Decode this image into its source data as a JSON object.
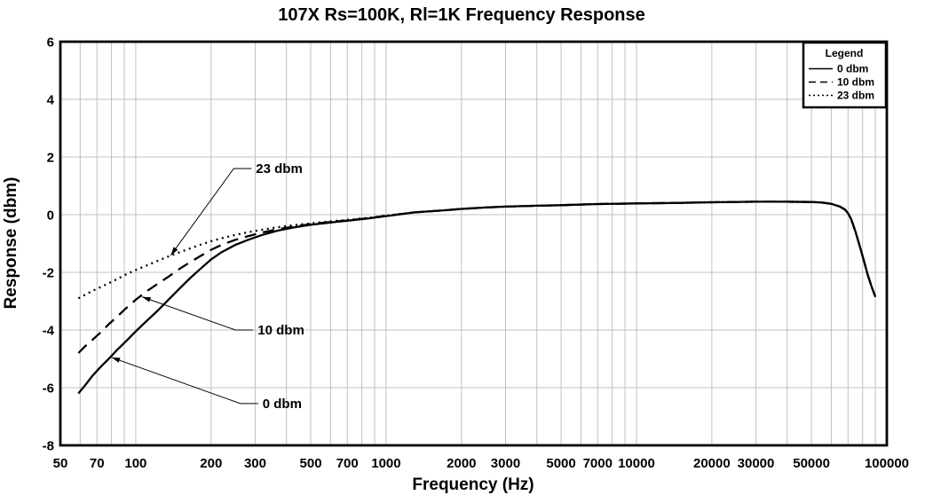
{
  "colors": {
    "background": "#ffffff",
    "grid": "#c0c0c0",
    "curve": "#000000",
    "text": "#000000",
    "border": "#000000"
  },
  "chart_data": {
    "type": "line",
    "title": "107X Rs=100K, Rl=1K Frequency Response",
    "xlabel": "Frequency (Hz)",
    "ylabel": "Response (dbm)",
    "x_scale": "log",
    "xlim": [
      50,
      100000
    ],
    "ylim": [
      -8,
      6
    ],
    "grid": true,
    "y_ticks": [
      {
        "v": 6,
        "label": "6"
      },
      {
        "v": 4,
        "label": "4"
      },
      {
        "v": 2,
        "label": "2"
      },
      {
        "v": 0,
        "label": "0"
      },
      {
        "v": -2,
        "label": "-2"
      },
      {
        "v": -4,
        "label": "-4"
      },
      {
        "v": -6,
        "label": "-6"
      },
      {
        "v": -8,
        "label": "-8"
      }
    ],
    "x_ticks": [
      {
        "f": 50,
        "label": "50"
      },
      {
        "f": 70,
        "label": "70"
      },
      {
        "f": 100,
        "label": "100"
      },
      {
        "f": 200,
        "label": "200"
      },
      {
        "f": 300,
        "label": "300"
      },
      {
        "f": 500,
        "label": "500"
      },
      {
        "f": 700,
        "label": "700"
      },
      {
        "f": 1000,
        "label": "1000"
      },
      {
        "f": 2000,
        "label": "2000"
      },
      {
        "f": 3000,
        "label": "3000"
      },
      {
        "f": 5000,
        "label": "5000"
      },
      {
        "f": 7000,
        "label": "7000"
      },
      {
        "f": 10000,
        "label": "10000"
      },
      {
        "f": 20000,
        "label": "20000"
      },
      {
        "f": 30000,
        "label": "30000"
      },
      {
        "f": 50000,
        "label": "50000"
      },
      {
        "f": 100000,
        "label": "100000"
      }
    ],
    "legend": {
      "title": "Legend",
      "position": "top-right",
      "entries": [
        {
          "label": "0 dbm",
          "style": "solid"
        },
        {
          "label": "10 dbm",
          "style": "dashed"
        },
        {
          "label": "23 dbm",
          "style": "dotted"
        }
      ]
    },
    "series": [
      {
        "name": "0 dbm",
        "style": "solid",
        "points": [
          [
            59,
            -6.2
          ],
          [
            63,
            -5.9
          ],
          [
            67,
            -5.6
          ],
          [
            72,
            -5.3
          ],
          [
            78,
            -5.0
          ],
          [
            84,
            -4.7
          ],
          [
            90,
            -4.45
          ],
          [
            100,
            -4.05
          ],
          [
            110,
            -3.7
          ],
          [
            120,
            -3.4
          ],
          [
            135,
            -2.95
          ],
          [
            150,
            -2.55
          ],
          [
            165,
            -2.2
          ],
          [
            180,
            -1.9
          ],
          [
            200,
            -1.55
          ],
          [
            220,
            -1.3
          ],
          [
            250,
            -1.05
          ],
          [
            280,
            -0.88
          ],
          [
            320,
            -0.7
          ],
          [
            370,
            -0.55
          ],
          [
            430,
            -0.44
          ],
          [
            500,
            -0.35
          ],
          [
            600,
            -0.27
          ],
          [
            700,
            -0.21
          ],
          [
            850,
            -0.13
          ],
          [
            1000,
            -0.05
          ],
          [
            1300,
            0.08
          ],
          [
            1700,
            0.15
          ],
          [
            2000,
            0.2
          ],
          [
            2500,
            0.25
          ],
          [
            3000,
            0.28
          ],
          [
            4000,
            0.31
          ],
          [
            5000,
            0.33
          ],
          [
            7000,
            0.37
          ],
          [
            10000,
            0.39
          ],
          [
            15000,
            0.41
          ],
          [
            20000,
            0.43
          ],
          [
            30000,
            0.45
          ],
          [
            40000,
            0.45
          ],
          [
            50000,
            0.44
          ],
          [
            55000,
            0.42
          ],
          [
            60000,
            0.38
          ],
          [
            65000,
            0.28
          ],
          [
            68000,
            0.18
          ],
          [
            70000,
            0.05
          ],
          [
            72000,
            -0.15
          ],
          [
            75000,
            -0.6
          ],
          [
            78000,
            -1.1
          ],
          [
            81000,
            -1.6
          ],
          [
            84000,
            -2.1
          ],
          [
            87000,
            -2.5
          ],
          [
            90000,
            -2.85
          ]
        ]
      },
      {
        "name": "10 dbm",
        "style": "dashed",
        "points": [
          [
            59,
            -4.8
          ],
          [
            63,
            -4.55
          ],
          [
            67,
            -4.35
          ],
          [
            72,
            -4.1
          ],
          [
            78,
            -3.8
          ],
          [
            84,
            -3.55
          ],
          [
            90,
            -3.3
          ],
          [
            100,
            -2.95
          ],
          [
            110,
            -2.67
          ],
          [
            120,
            -2.45
          ],
          [
            135,
            -2.15
          ],
          [
            150,
            -1.87
          ],
          [
            165,
            -1.65
          ],
          [
            180,
            -1.45
          ],
          [
            200,
            -1.22
          ],
          [
            220,
            -1.05
          ],
          [
            250,
            -0.87
          ],
          [
            280,
            -0.75
          ],
          [
            320,
            -0.62
          ],
          [
            370,
            -0.5
          ],
          [
            430,
            -0.41
          ],
          [
            500,
            -0.33
          ],
          [
            600,
            -0.25
          ],
          [
            700,
            -0.2
          ],
          [
            850,
            -0.12
          ],
          [
            1000,
            -0.04
          ],
          [
            1300,
            0.08
          ],
          [
            1700,
            0.15
          ],
          [
            2000,
            0.2
          ],
          [
            2500,
            0.25
          ],
          [
            3000,
            0.28
          ],
          [
            4000,
            0.31
          ],
          [
            5000,
            0.33
          ],
          [
            7000,
            0.37
          ],
          [
            10000,
            0.39
          ],
          [
            15000,
            0.41
          ],
          [
            20000,
            0.43
          ],
          [
            30000,
            0.45
          ],
          [
            40000,
            0.45
          ],
          [
            50000,
            0.44
          ],
          [
            55000,
            0.42
          ],
          [
            60000,
            0.38
          ],
          [
            65000,
            0.28
          ],
          [
            68000,
            0.18
          ],
          [
            70000,
            0.05
          ],
          [
            72000,
            -0.15
          ],
          [
            75000,
            -0.6
          ],
          [
            78000,
            -1.1
          ],
          [
            81000,
            -1.6
          ],
          [
            84000,
            -2.1
          ],
          [
            87000,
            -2.5
          ],
          [
            90000,
            -2.85
          ]
        ]
      },
      {
        "name": "23 dbm",
        "style": "dotted",
        "points": [
          [
            59,
            -2.9
          ],
          [
            63,
            -2.77
          ],
          [
            67,
            -2.65
          ],
          [
            72,
            -2.52
          ],
          [
            78,
            -2.38
          ],
          [
            84,
            -2.24
          ],
          [
            90,
            -2.1
          ],
          [
            100,
            -1.92
          ],
          [
            110,
            -1.77
          ],
          [
            120,
            -1.63
          ],
          [
            135,
            -1.45
          ],
          [
            150,
            -1.3
          ],
          [
            165,
            -1.17
          ],
          [
            180,
            -1.05
          ],
          [
            200,
            -0.92
          ],
          [
            220,
            -0.82
          ],
          [
            250,
            -0.7
          ],
          [
            280,
            -0.61
          ],
          [
            320,
            -0.52
          ],
          [
            370,
            -0.43
          ],
          [
            430,
            -0.36
          ],
          [
            500,
            -0.3
          ],
          [
            600,
            -0.23
          ],
          [
            700,
            -0.18
          ],
          [
            850,
            -0.11
          ],
          [
            1000,
            -0.03
          ],
          [
            1300,
            0.08
          ],
          [
            1700,
            0.15
          ],
          [
            2000,
            0.2
          ],
          [
            2500,
            0.25
          ],
          [
            3000,
            0.28
          ],
          [
            4000,
            0.31
          ],
          [
            5000,
            0.33
          ],
          [
            7000,
            0.37
          ],
          [
            10000,
            0.39
          ],
          [
            15000,
            0.41
          ],
          [
            20000,
            0.43
          ],
          [
            30000,
            0.45
          ],
          [
            40000,
            0.45
          ],
          [
            50000,
            0.44
          ],
          [
            55000,
            0.42
          ],
          [
            60000,
            0.38
          ],
          [
            65000,
            0.28
          ],
          [
            68000,
            0.18
          ],
          [
            70000,
            0.05
          ],
          [
            72000,
            -0.15
          ],
          [
            75000,
            -0.6
          ],
          [
            78000,
            -1.1
          ],
          [
            81000,
            -1.6
          ],
          [
            84000,
            -2.1
          ],
          [
            87000,
            -2.5
          ],
          [
            90000,
            -2.85
          ]
        ]
      }
    ],
    "annotations": [
      {
        "label": "23 dbm",
        "text_at": [
          302,
          1.6
        ],
        "arrow_tip": [
          138,
          -1.41
        ]
      },
      {
        "label": "10 dbm",
        "text_at": [
          307,
          -4.0
        ],
        "arrow_tip": [
          106,
          -2.85
        ]
      },
      {
        "label": "0 dbm",
        "text_at": [
          321,
          -6.55
        ],
        "arrow_tip": [
          80,
          -4.95
        ]
      }
    ]
  }
}
